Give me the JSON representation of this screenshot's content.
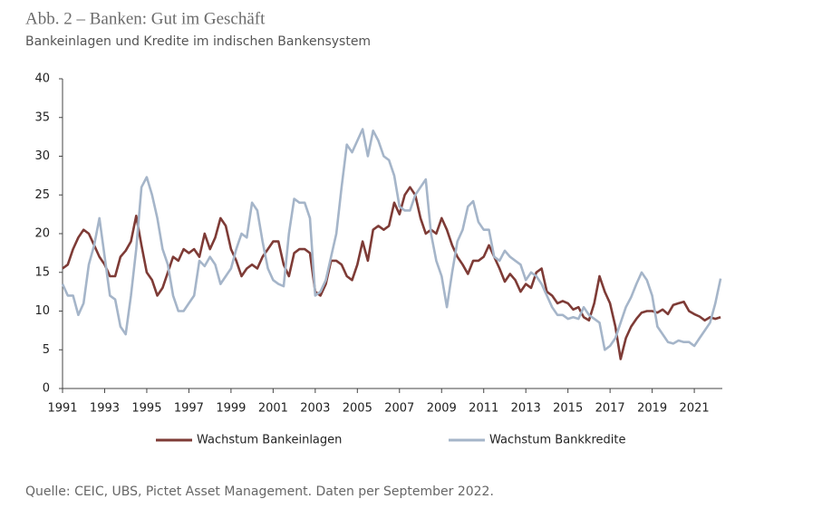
{
  "chart_data": {
    "type": "line",
    "title": "Abb. 2 – Banken: Gut im Geschäft",
    "subtitle": "Bankeinlagen und Kredite im indischen Bankensystem",
    "source": "Quelle: CEIC, UBS, Pictet Asset Management. Daten per September 2022.",
    "x": [
      1991,
      1991.25,
      1991.5,
      1991.75,
      1992,
      1992.25,
      1992.5,
      1992.75,
      1993,
      1993.25,
      1993.5,
      1993.75,
      1994,
      1994.25,
      1994.5,
      1994.75,
      1995,
      1995.25,
      1995.5,
      1995.75,
      1996,
      1996.25,
      1996.5,
      1996.75,
      1997,
      1997.25,
      1997.5,
      1997.75,
      1998,
      1998.25,
      1998.5,
      1998.75,
      1999,
      1999.25,
      1999.5,
      1999.75,
      2000,
      2000.25,
      2000.5,
      2000.75,
      2001,
      2001.25,
      2001.5,
      2001.75,
      2002,
      2002.25,
      2002.5,
      2002.75,
      2003,
      2003.25,
      2003.5,
      2003.75,
      2004,
      2004.25,
      2004.5,
      2004.75,
      2005,
      2005.25,
      2005.5,
      2005.75,
      2006,
      2006.25,
      2006.5,
      2006.75,
      2007,
      2007.25,
      2007.5,
      2007.75,
      2008,
      2008.25,
      2008.5,
      2008.75,
      2009,
      2009.25,
      2009.5,
      2009.75,
      2010,
      2010.25,
      2010.5,
      2010.75,
      2011,
      2011.25,
      2011.5,
      2011.75,
      2012,
      2012.25,
      2012.5,
      2012.75,
      2013,
      2013.25,
      2013.5,
      2013.75,
      2014,
      2014.25,
      2014.5,
      2014.75,
      2015,
      2015.25,
      2015.5,
      2015.75,
      2016,
      2016.25,
      2016.5,
      2016.75,
      2017,
      2017.25,
      2017.5,
      2017.75,
      2018,
      2018.25,
      2018.5,
      2018.75,
      2019,
      2019.25,
      2019.5,
      2019.75,
      2020,
      2020.25,
      2020.5,
      2020.75,
      2021,
      2021.25,
      2021.5,
      2021.75,
      2022,
      2022.25
    ],
    "series": [
      {
        "name": "Wachstum Bankeinlagen",
        "color": "#7e3b36",
        "values": [
          15.5,
          16,
          18,
          19.5,
          20.5,
          20,
          18.5,
          17,
          16,
          14.5,
          14.5,
          17,
          17.8,
          19,
          22.3,
          18.5,
          15,
          14,
          12,
          13,
          15,
          17,
          16.5,
          18,
          17.5,
          18,
          17,
          20,
          18,
          19.5,
          22,
          21,
          18,
          16.5,
          14.5,
          15.5,
          16,
          15.5,
          17,
          18,
          19,
          19,
          16,
          14.5,
          17.5,
          18,
          18,
          17.5,
          12.5,
          12,
          13.5,
          16.5,
          16.5,
          16,
          14.5,
          14,
          16,
          19,
          16.5,
          20.5,
          21,
          20.5,
          21,
          24,
          22.5,
          25,
          26,
          25,
          22,
          20,
          20.5,
          20,
          22,
          20.5,
          18.5,
          17,
          16,
          14.8,
          16.5,
          16.5,
          17,
          18.5,
          17,
          15.5,
          13.8,
          14.8,
          14,
          12.5,
          13.5,
          13,
          15,
          15.5,
          12.5,
          12,
          11,
          11.3,
          11,
          10.2,
          10.5,
          9.2,
          8.8,
          11,
          14.5,
          12.5,
          11,
          8,
          3.8,
          6.5,
          8,
          9,
          9.8,
          10,
          10,
          9.8,
          10.2,
          9.6,
          10.8,
          11,
          11.2,
          10,
          9.6,
          9.3,
          8.8,
          9.2,
          9,
          9.2
        ]
      },
      {
        "name": "Wachstum Bankkredite",
        "color": "#a5b5c9",
        "values": [
          13.5,
          12,
          12,
          9.5,
          11,
          16,
          18.5,
          22,
          17,
          12,
          11.5,
          8,
          7,
          12,
          18,
          26,
          27.3,
          25,
          22,
          18,
          16,
          12,
          10,
          10,
          11,
          12,
          16.5,
          15.8,
          17,
          16,
          13.5,
          14.5,
          15.5,
          18,
          20,
          19.5,
          24,
          23,
          19,
          15.5,
          14,
          13.5,
          13.2,
          20,
          24.5,
          24,
          24,
          22,
          12,
          12.5,
          14,
          17,
          20,
          26,
          31.5,
          30.5,
          32,
          33.5,
          30,
          33.3,
          32,
          30,
          29.5,
          27.5,
          23.5,
          23,
          23,
          25,
          26,
          27,
          20,
          16.5,
          14.5,
          10.5,
          15,
          19,
          20.5,
          23.5,
          24.2,
          21.5,
          20.5,
          20.5,
          17,
          16.5,
          17.8,
          17,
          16.5,
          16,
          14,
          15,
          14.5,
          13.5,
          12,
          10.5,
          9.5,
          9.5,
          9,
          9.2,
          9,
          10.5,
          9.5,
          9,
          8.5,
          5,
          5.5,
          6.5,
          8.5,
          10.5,
          11.8,
          13.5,
          15,
          14,
          12,
          8,
          7,
          6,
          5.8,
          6.2,
          6,
          6,
          5.5,
          6.5,
          7.5,
          8.5,
          11,
          14.2
        ]
      }
    ],
    "xlim": [
      1991,
      2022.33
    ],
    "xticks": [
      1991,
      1993,
      1995,
      1997,
      1999,
      2001,
      2003,
      2005,
      2007,
      2009,
      2011,
      2013,
      2015,
      2017,
      2019,
      2021
    ],
    "ylim": [
      0,
      40
    ],
    "yticks": [
      0,
      5,
      10,
      15,
      20,
      25,
      30,
      35,
      40
    ],
    "legend": "bottom"
  }
}
